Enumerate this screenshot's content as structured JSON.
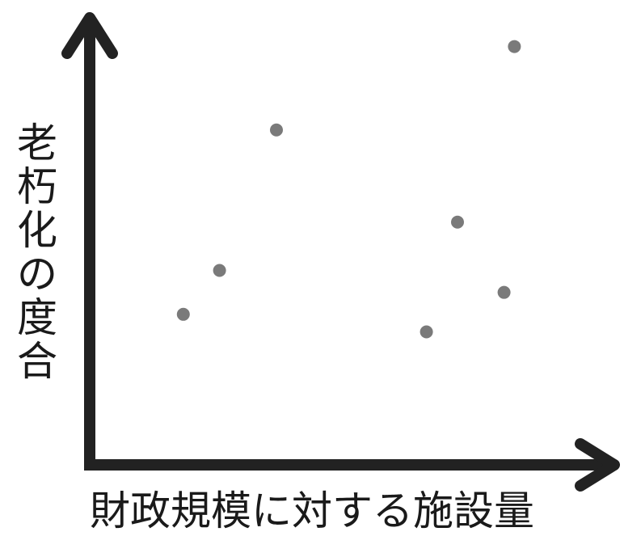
{
  "chart_data": {
    "type": "scatter",
    "xlabel": "財政規模に対する施設量",
    "ylabel": "老朽化の度合",
    "xlim": [
      0,
      100
    ],
    "ylim": [
      0,
      100
    ],
    "grid": false,
    "points": [
      {
        "x": 17,
        "y": 33
      },
      {
        "x": 24,
        "y": 43
      },
      {
        "x": 35,
        "y": 75
      },
      {
        "x": 64,
        "y": 29
      },
      {
        "x": 70,
        "y": 54
      },
      {
        "x": 79,
        "y": 38
      },
      {
        "x": 81,
        "y": 94
      }
    ],
    "colors": {
      "axis": "#222222",
      "point": "#7a7a7a"
    }
  }
}
